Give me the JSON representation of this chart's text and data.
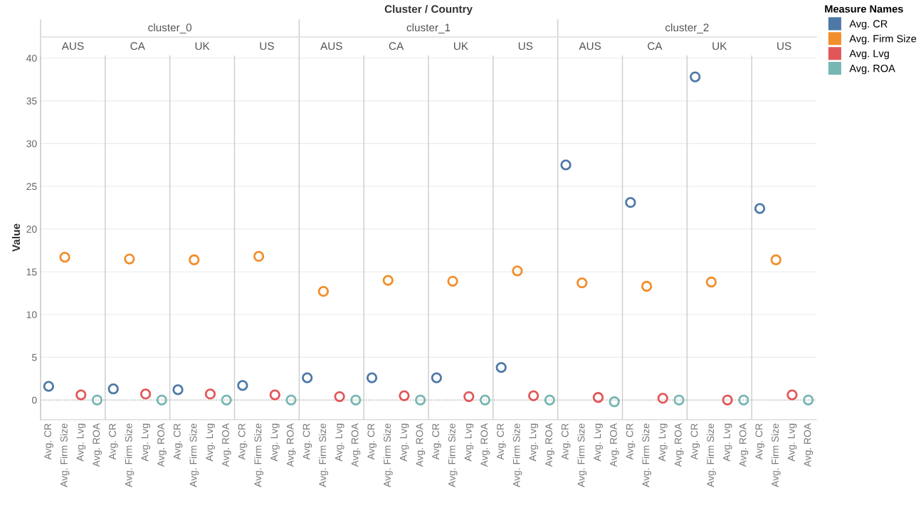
{
  "chart_data": {
    "type": "scatter",
    "ylabel": "Value",
    "annotations": [
      "Cluster / Country",
      "cluster_0",
      "AUS",
      "CA",
      "UK",
      "US",
      "cluster_1",
      "AUS",
      "CA",
      "UK",
      "US",
      "cluster_2",
      "AUS",
      "CA",
      "UK",
      "US"
    ],
    "categories": [
      "Avg. CR",
      "Avg. Firm Size",
      "Avg. Lvg",
      "Avg. ROA",
      "Avg. CR",
      "Avg. Firm Size",
      "Avg. Lvg",
      "Avg. ROA",
      "Avg. CR",
      "Avg. Firm Size",
      "Avg. Lvg",
      "Avg. ROA",
      "Avg. CR",
      "Avg. Firm Size",
      "Avg. Lvg",
      "Avg. ROA",
      "Avg. CR",
      "Avg. Firm Size",
      "Avg. Lvg",
      "Avg. ROA",
      "Avg. CR",
      "Avg. Firm Size",
      "Avg. Lvg",
      "Avg. ROA",
      "Avg. CR",
      "Avg. Firm Size",
      "Avg. Lvg",
      "Avg. ROA",
      "Avg. CR",
      "Avg. Firm Size",
      "Avg. Lvg",
      "Avg. ROA",
      "Avg. CR",
      "Avg. Firm Size",
      "Avg. Lvg",
      "Avg. ROA",
      "Avg. CR",
      "Avg. Firm Size",
      "Avg. Lvg",
      "Avg. ROA",
      "Avg. CR",
      "Avg. Firm Size",
      "Avg. Lvg",
      "Avg. ROA",
      "Avg. CR",
      "Avg. Firm Size",
      "Avg. Lvg",
      "Avg. ROA"
    ],
    "ylim": [
      -2.3,
      40.3
    ],
    "yticks": [
      0,
      5,
      10,
      15,
      20,
      25,
      30,
      35,
      40
    ],
    "grid": "y",
    "marker": "circle",
    "legend": "right",
    "legend_title": "Measure Names",
    "ref_lines": [
      {
        "axis": "y",
        "value": 0,
        "line_style": "dotted",
        "color": "#aaaaaa"
      }
    ],
    "series": [
      {
        "name": "Avg. CR",
        "color": "#4e79a7",
        "values": [
          1.6,
          null,
          null,
          null,
          1.3,
          null,
          null,
          null,
          1.2,
          null,
          null,
          null,
          1.7,
          null,
          null,
          null,
          2.6,
          null,
          null,
          null,
          2.6,
          null,
          null,
          null,
          2.6,
          null,
          null,
          null,
          3.8,
          null,
          null,
          null,
          27.5,
          null,
          null,
          null,
          23.1,
          null,
          null,
          null,
          37.8,
          null,
          null,
          null,
          22.4,
          null,
          null,
          null
        ]
      },
      {
        "name": "Avg. Firm Size",
        "color": "#f28e2b",
        "values": [
          null,
          16.7,
          null,
          null,
          null,
          16.5,
          null,
          null,
          null,
          16.4,
          null,
          null,
          null,
          16.8,
          null,
          null,
          null,
          12.7,
          null,
          null,
          null,
          14.0,
          null,
          null,
          null,
          13.9,
          null,
          null,
          null,
          15.1,
          null,
          null,
          null,
          13.7,
          null,
          null,
          null,
          13.3,
          null,
          null,
          null,
          13.8,
          null,
          null,
          null,
          16.4,
          null,
          null
        ]
      },
      {
        "name": "Avg. Lvg",
        "color": "#e15759",
        "values": [
          null,
          null,
          0.6,
          null,
          null,
          null,
          0.7,
          null,
          null,
          null,
          0.7,
          null,
          null,
          null,
          0.6,
          null,
          null,
          null,
          0.4,
          null,
          null,
          null,
          0.5,
          null,
          null,
          null,
          0.4,
          null,
          null,
          null,
          0.5,
          null,
          null,
          null,
          0.3,
          null,
          null,
          null,
          0.2,
          null,
          null,
          null,
          0.0,
          null,
          null,
          null,
          0.6,
          null
        ]
      },
      {
        "name": "Avg. ROA",
        "color": "#76b7b2",
        "values": [
          null,
          null,
          null,
          0.0,
          null,
          null,
          null,
          0.0,
          null,
          null,
          null,
          0.0,
          null,
          null,
          null,
          0.0,
          null,
          null,
          null,
          0.0,
          null,
          null,
          null,
          0.0,
          null,
          null,
          null,
          0.0,
          null,
          null,
          null,
          0.0,
          null,
          null,
          null,
          -0.2,
          null,
          null,
          null,
          0.0,
          null,
          null,
          null,
          0.0,
          null,
          null,
          null,
          0.0
        ]
      }
    ]
  }
}
